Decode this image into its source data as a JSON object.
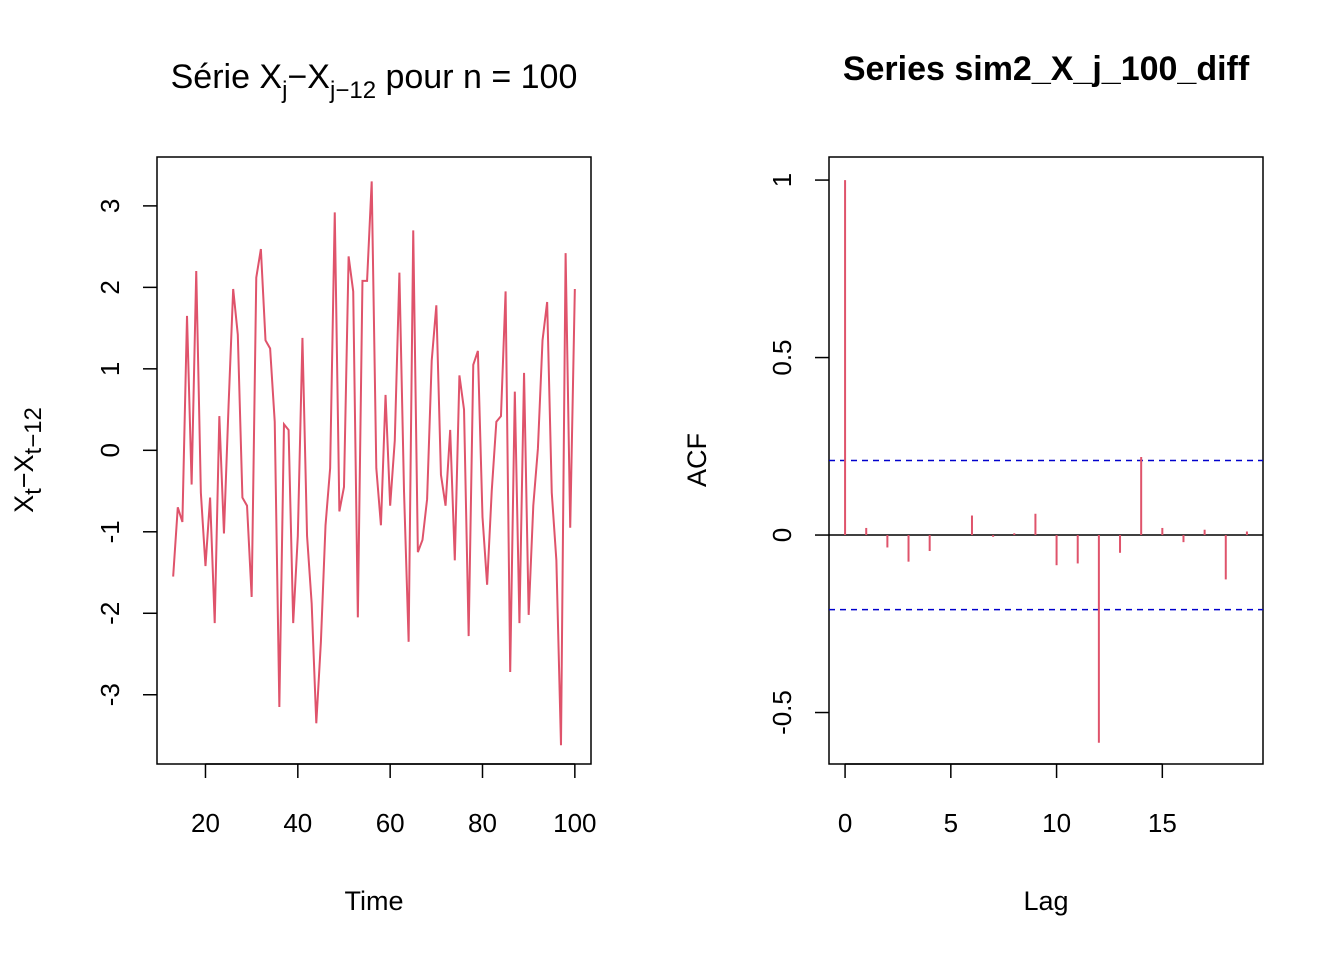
{
  "chart_data": [
    {
      "type": "line",
      "title": {
        "prefix": "Série X",
        "sub1": "j",
        "minus": "−X",
        "sub2": "j−12",
        "suffix": " pour n =  100"
      },
      "xlabel": "Time",
      "ylabel": {
        "a": "X",
        "a_sub": "t",
        "minus": "−X",
        "b_sub": "t−12"
      },
      "xlim": [
        9.5,
        103.5
      ],
      "ylim": [
        -3.85,
        3.6
      ],
      "xticks": [
        20,
        40,
        60,
        80,
        100
      ],
      "yticks": [
        -3,
        -2,
        -1,
        0,
        1,
        2,
        3
      ],
      "line_color": "#DF536B",
      "x_start": 13,
      "values": [
        -1.55,
        -0.7,
        -0.88,
        1.65,
        -0.42,
        2.2,
        -0.52,
        -1.42,
        -0.58,
        -2.12,
        0.42,
        -1.02,
        0.55,
        1.98,
        1.42,
        -0.58,
        -0.68,
        -1.8,
        2.12,
        2.47,
        1.35,
        1.25,
        0.35,
        -3.15,
        0.32,
        0.25,
        -2.12,
        -1.05,
        1.38,
        -1.05,
        -1.88,
        -3.35,
        -2.35,
        -0.92,
        -0.22,
        2.92,
        -0.75,
        -0.45,
        2.38,
        1.95,
        -2.05,
        2.08,
        2.08,
        3.3,
        -0.22,
        -0.92,
        0.68,
        -0.68,
        0.12,
        2.18,
        -0.5,
        -2.35,
        2.7,
        -1.25,
        -1.1,
        -0.6,
        1.1,
        1.78,
        -0.3,
        -0.68,
        0.25,
        -1.35,
        0.92,
        0.5,
        -2.28,
        1.05,
        1.22,
        -0.82,
        -1.65,
        -0.5,
        0.35,
        0.42,
        1.95,
        -2.72,
        0.72,
        -2.12,
        0.95,
        -2.02,
        -0.68,
        0.02,
        1.35,
        1.82,
        -0.52,
        -1.35,
        -3.62,
        2.42,
        -0.95,
        1.98
      ]
    },
    {
      "type": "bar",
      "title": "Series  sim2_X_j_100_diff",
      "xlabel": "Lag",
      "ylabel": "ACF",
      "xlim": [
        -0.76,
        19.76
      ],
      "ylim": [
        -0.645,
        1.065
      ],
      "xticks": [
        0,
        5,
        10,
        15
      ],
      "yticks": [
        -0.5,
        0.0,
        0.5,
        1.0
      ],
      "bar_color": "#DF536B",
      "ci_color": "#0000CD",
      "ci": 0.21,
      "lags": [
        0,
        1,
        2,
        3,
        4,
        5,
        6,
        7,
        8,
        9,
        10,
        11,
        12,
        13,
        14,
        15,
        16,
        17,
        18,
        19
      ],
      "values": [
        1.0,
        0.02,
        -0.035,
        -0.075,
        -0.045,
        0.0,
        0.055,
        -0.005,
        0.005,
        0.06,
        -0.085,
        -0.08,
        -0.585,
        -0.05,
        0.22,
        0.02,
        -0.02,
        0.015,
        -0.125,
        0.01
      ]
    }
  ]
}
